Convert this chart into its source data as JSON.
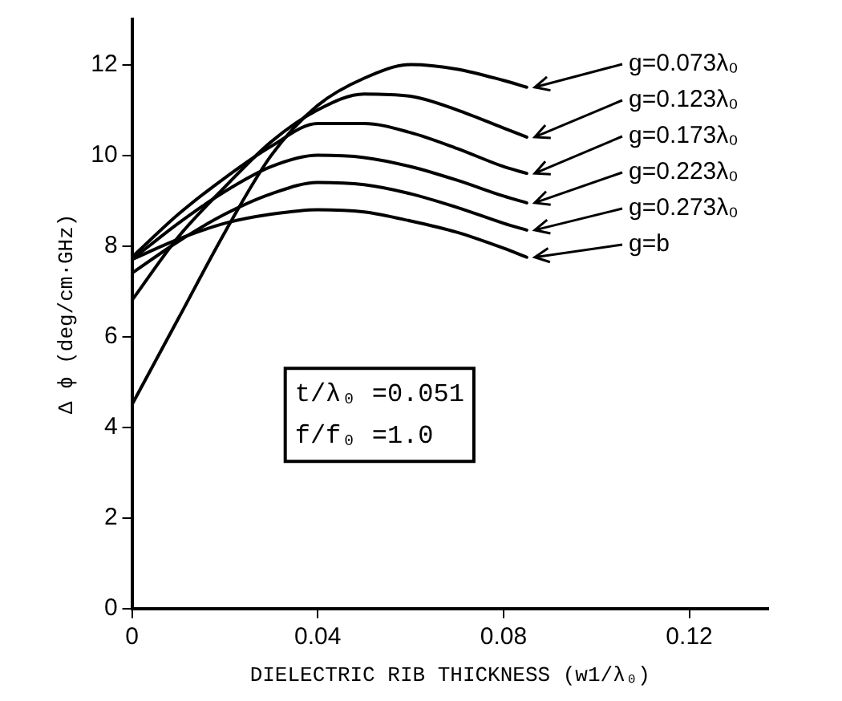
{
  "chart_data": {
    "type": "line",
    "xlabel": "DIELECTRIC RIB THICKNESS (w1/λ₀)",
    "ylabel": "Δ ϕ (deg/cm·GHz)",
    "x": [
      0,
      0.01,
      0.02,
      0.03,
      0.04,
      0.05,
      0.06,
      0.07,
      0.08,
      0.085
    ],
    "series": [
      {
        "name": "g=0.073λ₀",
        "color": "#000000",
        "values": [
          4.5,
          6.4,
          8.3,
          10.0,
          11.1,
          11.7,
          12.0,
          11.9,
          11.65,
          11.5
        ]
      },
      {
        "name": "g=0.123λ₀",
        "color": "#000000",
        "values": [
          6.8,
          8.2,
          9.3,
          10.3,
          11.0,
          11.35,
          11.3,
          11.0,
          10.6,
          10.4
        ]
      },
      {
        "name": "g=0.173λ₀",
        "color": "#000000",
        "values": [
          7.75,
          8.7,
          9.5,
          10.2,
          10.7,
          10.7,
          10.5,
          10.15,
          9.75,
          9.6
        ]
      },
      {
        "name": "g=0.223λ₀",
        "color": "#000000",
        "values": [
          7.7,
          8.5,
          9.2,
          9.75,
          10.0,
          9.95,
          9.75,
          9.45,
          9.1,
          8.95
        ]
      },
      {
        "name": "g=0.273λ₀",
        "color": "#000000",
        "values": [
          7.4,
          8.1,
          8.7,
          9.15,
          9.4,
          9.35,
          9.15,
          8.85,
          8.5,
          8.35
        ]
      },
      {
        "name": "g=b",
        "color": "#000000",
        "values": [
          7.7,
          8.15,
          8.5,
          8.7,
          8.8,
          8.75,
          8.55,
          8.3,
          7.95,
          7.75
        ]
      }
    ],
    "xlim": [
      0,
      0.137
    ],
    "xticks": [
      0,
      0.04,
      0.08,
      0.12
    ],
    "ylim": [
      0,
      13
    ],
    "yticks": [
      0,
      2,
      4,
      6,
      8,
      10,
      12
    ],
    "annotations": [
      "t/λ₀ =0.051",
      "f/f₀ =1.0"
    ],
    "grid": false,
    "legend": "right",
    "marker": "none",
    "line_style": "solid"
  }
}
